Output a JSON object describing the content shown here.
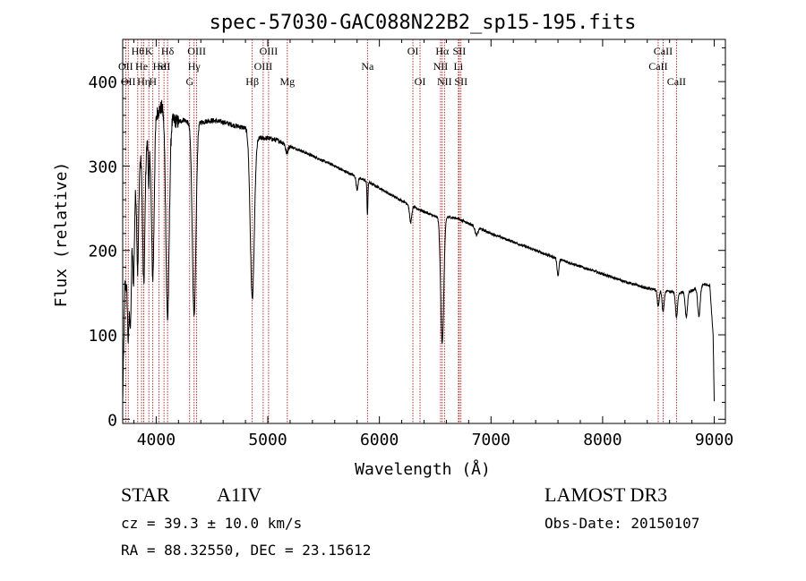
{
  "chart_data": {
    "type": "line",
    "title": "spec-57030-GAC088N22B2_sp15-195.fits",
    "xlabel": "Wavelength (Å)",
    "ylabel": "Flux (relative)",
    "xlim": [
      3700,
      9100
    ],
    "ylim": [
      -5,
      450
    ],
    "xticks": [
      4000,
      5000,
      6000,
      7000,
      8000,
      9000
    ],
    "xtick_labels": [
      "4000",
      "5000",
      "6000",
      "7000",
      "8000",
      "9000"
    ],
    "yticks": [
      0,
      100,
      200,
      300,
      400
    ],
    "ytick_labels": [
      "0",
      "100",
      "200",
      "300",
      "400"
    ],
    "continuum": [
      [
        3700,
        20
      ],
      [
        3720,
        160
      ],
      [
        3760,
        150
      ],
      [
        3800,
        260
      ],
      [
        3840,
        300
      ],
      [
        3890,
        320
      ],
      [
        3940,
        330
      ],
      [
        3990,
        360
      ],
      [
        4050,
        370
      ],
      [
        4100,
        360
      ],
      [
        4150,
        355
      ],
      [
        4200,
        352
      ],
      [
        4250,
        355
      ],
      [
        4300,
        350
      ],
      [
        4400,
        352
      ],
      [
        4500,
        354
      ],
      [
        4600,
        352
      ],
      [
        4700,
        348
      ],
      [
        4800,
        345
      ],
      [
        4900,
        333
      ],
      [
        5000,
        333
      ],
      [
        5100,
        330
      ],
      [
        5200,
        323
      ],
      [
        5300,
        318
      ],
      [
        5400,
        312
      ],
      [
        5500,
        306
      ],
      [
        5600,
        300
      ],
      [
        5700,
        293
      ],
      [
        5800,
        287
      ],
      [
        5900,
        281
      ],
      [
        6000,
        274
      ],
      [
        6100,
        266
      ],
      [
        6200,
        259
      ],
      [
        6300,
        252
      ],
      [
        6400,
        246
      ],
      [
        6500,
        240
      ],
      [
        6600,
        240
      ],
      [
        6700,
        238
      ],
      [
        6800,
        232
      ],
      [
        6900,
        226
      ],
      [
        7000,
        220
      ],
      [
        7200,
        210
      ],
      [
        7400,
        200
      ],
      [
        7600,
        190
      ],
      [
        7800,
        181
      ],
      [
        8000,
        172
      ],
      [
        8200,
        163
      ],
      [
        8400,
        155
      ],
      [
        8600,
        151
      ],
      [
        8700,
        150
      ],
      [
        8800,
        152
      ],
      [
        8900,
        160
      ],
      [
        8960,
        158
      ],
      [
        8990,
        100
      ],
      [
        9000,
        20
      ]
    ],
    "absorption_features": [
      {
        "center": 3750,
        "depth": 60,
        "width": 6
      },
      {
        "center": 3771,
        "depth": 70,
        "width": 6
      },
      {
        "center": 3798,
        "depth": 90,
        "width": 7
      },
      {
        "center": 3835,
        "depth": 120,
        "width": 8
      },
      {
        "center": 3889,
        "depth": 160,
        "width": 10
      },
      {
        "center": 3934,
        "depth": 60,
        "width": 4
      },
      {
        "center": 3970,
        "depth": 180,
        "width": 12
      },
      {
        "center": 4102,
        "depth": 240,
        "width": 15
      },
      {
        "center": 4340,
        "depth": 230,
        "width": 16
      },
      {
        "center": 4861,
        "depth": 195,
        "width": 18
      },
      {
        "center": 5170,
        "depth": 10,
        "width": 10
      },
      {
        "center": 5800,
        "depth": 15,
        "width": 8
      },
      {
        "center": 5893,
        "depth": 40,
        "width": 4
      },
      {
        "center": 6280,
        "depth": 20,
        "width": 10
      },
      {
        "center": 6563,
        "depth": 150,
        "width": 14
      },
      {
        "center": 6870,
        "depth": 10,
        "width": 12
      },
      {
        "center": 7600,
        "depth": 20,
        "width": 8
      },
      {
        "center": 8498,
        "depth": 20,
        "width": 8
      },
      {
        "center": 8542,
        "depth": 25,
        "width": 9
      },
      {
        "center": 8662,
        "depth": 30,
        "width": 9
      },
      {
        "center": 8750,
        "depth": 30,
        "width": 10
      },
      {
        "center": 8863,
        "depth": 35,
        "width": 11
      }
    ],
    "line_markers": [
      {
        "x": 3727,
        "label": "OII",
        "row": 2
      },
      {
        "x": 3750,
        "label": "OII",
        "row": 3
      },
      {
        "x": 3835,
        "label": "Hθ",
        "row": 1
      },
      {
        "x": 3869,
        "label": "He",
        "row": 2
      },
      {
        "x": 3889,
        "label": "Hη",
        "row": 3
      },
      {
        "x": 3934,
        "label": "K",
        "row": 1
      },
      {
        "x": 3970,
        "label": "H",
        "row": 3
      },
      {
        "x": 4026,
        "label": "He",
        "row": 2
      },
      {
        "x": 4070,
        "label": "SII",
        "row": 2
      },
      {
        "x": 4102,
        "label": "Hδ",
        "row": 1
      },
      {
        "x": 4300,
        "label": "G",
        "row": 3
      },
      {
        "x": 4340,
        "label": "Hγ",
        "row": 2
      },
      {
        "x": 4363,
        "label": "OIII",
        "row": 1
      },
      {
        "x": 4861,
        "label": "Hβ",
        "row": 3
      },
      {
        "x": 4959,
        "label": "OIII",
        "row": 2
      },
      {
        "x": 5007,
        "label": "OIII",
        "row": 1
      },
      {
        "x": 5175,
        "label": "Mg",
        "row": 3
      },
      {
        "x": 5893,
        "label": "Na",
        "row": 2
      },
      {
        "x": 6300,
        "label": "OI",
        "row": 1
      },
      {
        "x": 6364,
        "label": "OI",
        "row": 3
      },
      {
        "x": 6548,
        "label": "NII",
        "row": 2
      },
      {
        "x": 6563,
        "label": "Hα",
        "row": 1
      },
      {
        "x": 6583,
        "label": "NII",
        "row": 3
      },
      {
        "x": 6708,
        "label": "Li",
        "row": 2
      },
      {
        "x": 6716,
        "label": "SII",
        "row": 1
      },
      {
        "x": 6731,
        "label": "SII",
        "row": 3
      },
      {
        "x": 8498,
        "label": "CaII",
        "row": 2
      },
      {
        "x": 8542,
        "label": "CaII",
        "row": 1
      },
      {
        "x": 8662,
        "label": "CaII",
        "row": 3
      }
    ]
  },
  "info": {
    "object_type": "STAR",
    "subclass": "A1IV",
    "survey": "LAMOST DR3",
    "cz": "cz = 39.3 ± 10.0 km/s",
    "obs_date": "Obs-Date: 20150107",
    "radec": "RA =  88.32550, DEC =  23.15612"
  },
  "colors": {
    "spectrum": "#000000",
    "marker": "#a00000",
    "text": "#000000"
  }
}
